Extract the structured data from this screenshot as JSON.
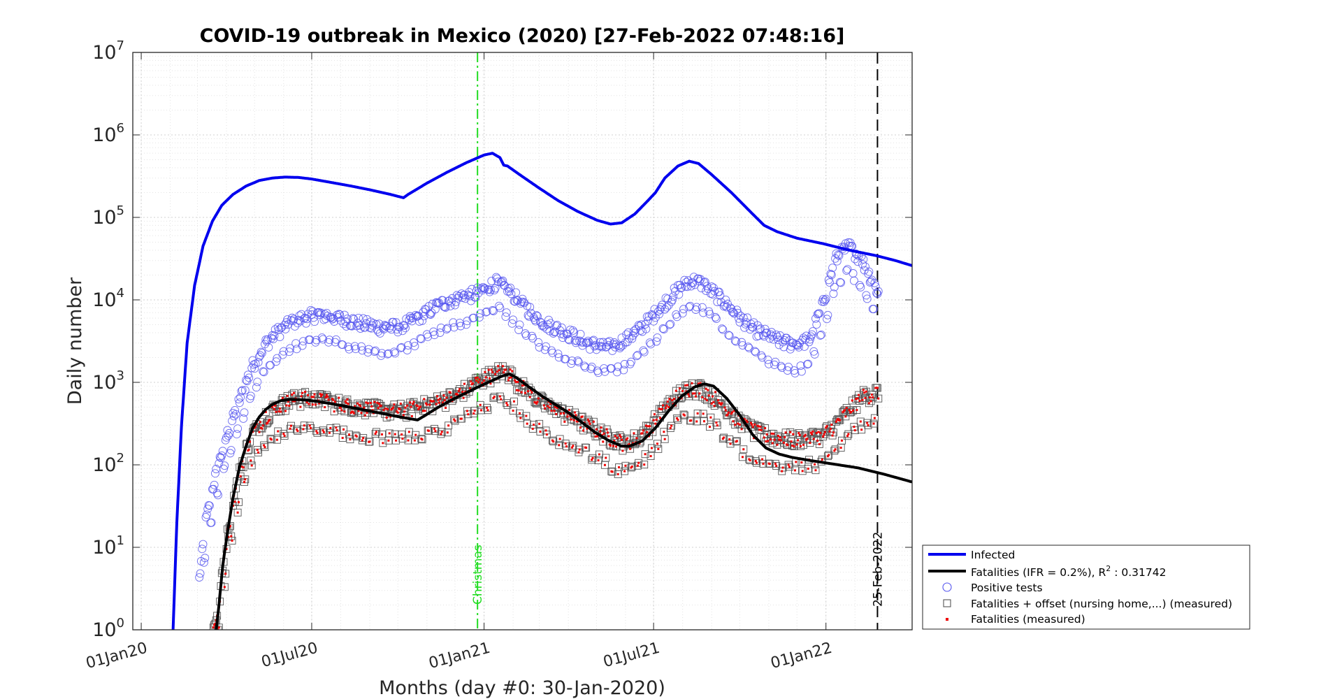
{
  "chart_data": {
    "type": "line",
    "title": "COVID-19 outbreak in Mexico (2020) [27-Feb-2022 07:48:16]",
    "xlabel": "Months (day #0: 30-Jan-2020)",
    "ylabel": "Daily number",
    "yscale": "log",
    "xlim": [
      "2019-12-23",
      "2022-04-03"
    ],
    "ylim": [
      1,
      10000000
    ],
    "x_ticks": [
      {
        "date": "2020-01-01",
        "label": "01Jan20"
      },
      {
        "date": "2020-07-01",
        "label": "01Jul20"
      },
      {
        "date": "2021-01-01",
        "label": "01Jan21"
      },
      {
        "date": "2021-07-01",
        "label": "01Jul21"
      },
      {
        "date": "2022-01-01",
        "label": "01Jan22"
      }
    ],
    "y_ticks": [
      {
        "value": 1,
        "base": "10",
        "exp": "0"
      },
      {
        "value": 10,
        "base": "10",
        "exp": "1"
      },
      {
        "value": 100,
        "base": "10",
        "exp": "2"
      },
      {
        "value": 1000,
        "base": "10",
        "exp": "3"
      },
      {
        "value": 10000,
        "base": "10",
        "exp": "4"
      },
      {
        "value": 100000,
        "base": "10",
        "exp": "5"
      },
      {
        "value": 1000000,
        "base": "10",
        "exp": "6"
      },
      {
        "value": 10000000,
        "base": "10",
        "exp": "7"
      }
    ],
    "grid": true,
    "legend_position": "right, outside bottom",
    "vertical_lines": [
      {
        "date": "2020-12-25",
        "label": "Christmas",
        "color": "#22dd22",
        "style": "dash-dot"
      },
      {
        "date": "2022-02-25",
        "label": "25-Feb-2022",
        "color": "#000000",
        "style": "dashed"
      }
    ],
    "series": [
      {
        "name": "Infected",
        "kind": "line",
        "color": "#0000ee",
        "points": [
          [
            "2020-02-04",
            1
          ],
          [
            "2020-02-08",
            20
          ],
          [
            "2020-02-13",
            300
          ],
          [
            "2020-02-19",
            3000
          ],
          [
            "2020-02-27",
            15000
          ],
          [
            "2020-03-07",
            45000
          ],
          [
            "2020-03-17",
            90000
          ],
          [
            "2020-03-27",
            140000
          ],
          [
            "2020-04-08",
            190000
          ],
          [
            "2020-04-22",
            240000
          ],
          [
            "2020-05-06",
            280000
          ],
          [
            "2020-05-20",
            300000
          ],
          [
            "2020-06-03",
            308000
          ],
          [
            "2020-06-17",
            305000
          ],
          [
            "2020-07-01",
            292000
          ],
          [
            "2020-07-22",
            265000
          ],
          [
            "2020-08-12",
            240000
          ],
          [
            "2020-09-02",
            215000
          ],
          [
            "2020-09-23",
            190000
          ],
          [
            "2020-10-07",
            173000
          ],
          [
            "2020-10-12",
            190000
          ],
          [
            "2020-11-01",
            260000
          ],
          [
            "2020-11-22",
            350000
          ],
          [
            "2020-12-13",
            460000
          ],
          [
            "2021-01-01",
            570000
          ],
          [
            "2021-01-10",
            600000
          ],
          [
            "2021-01-18",
            530000
          ],
          [
            "2021-01-22",
            430000
          ],
          [
            "2021-01-26",
            420000
          ],
          [
            "2021-02-08",
            330000
          ],
          [
            "2021-02-28",
            230000
          ],
          [
            "2021-03-21",
            160000
          ],
          [
            "2021-04-11",
            118000
          ],
          [
            "2021-05-02",
            92000
          ],
          [
            "2021-05-16",
            83000
          ],
          [
            "2021-05-28",
            86000
          ],
          [
            "2021-06-11",
            110000
          ],
          [
            "2021-06-25",
            160000
          ],
          [
            "2021-07-03",
            200000
          ],
          [
            "2021-07-13",
            300000
          ],
          [
            "2021-07-27",
            420000
          ],
          [
            "2021-08-08",
            480000
          ],
          [
            "2021-08-18",
            450000
          ],
          [
            "2021-09-01",
            330000
          ],
          [
            "2021-09-22",
            200000
          ],
          [
            "2021-10-13",
            115000
          ],
          [
            "2021-10-27",
            80000
          ],
          [
            "2021-11-10",
            67000
          ],
          [
            "2021-12-01",
            56000
          ],
          [
            "2021-12-29",
            48000
          ],
          [
            "2022-01-26",
            40000
          ],
          [
            "2022-02-23",
            34500
          ],
          [
            "2022-03-16",
            30000
          ],
          [
            "2022-04-03",
            26000
          ]
        ]
      },
      {
        "name": "Fatalities (IFR = 0.2%), R",
        "name_sup": "2",
        "name_rest": " : 0.31742",
        "kind": "line",
        "color": "#000000",
        "points": [
          [
            "2020-03-21",
            1
          ],
          [
            "2020-03-24",
            2
          ],
          [
            "2020-03-28",
            6
          ],
          [
            "2020-04-02",
            15
          ],
          [
            "2020-04-08",
            40
          ],
          [
            "2020-04-15",
            95
          ],
          [
            "2020-04-22",
            170
          ],
          [
            "2020-04-29",
            280
          ],
          [
            "2020-05-06",
            380
          ],
          [
            "2020-05-13",
            470
          ],
          [
            "2020-05-20",
            540
          ],
          [
            "2020-05-29",
            600
          ],
          [
            "2020-06-08",
            620
          ],
          [
            "2020-06-22",
            615
          ],
          [
            "2020-07-06",
            590
          ],
          [
            "2020-07-20",
            555
          ],
          [
            "2020-08-03",
            520
          ],
          [
            "2020-08-17",
            485
          ],
          [
            "2020-08-31",
            450
          ],
          [
            "2020-09-14",
            420
          ],
          [
            "2020-09-28",
            390
          ],
          [
            "2020-10-12",
            365
          ],
          [
            "2020-10-22",
            350
          ],
          [
            "2020-10-29",
            390
          ],
          [
            "2020-11-12",
            490
          ],
          [
            "2020-11-26",
            600
          ],
          [
            "2020-12-10",
            720
          ],
          [
            "2020-12-24",
            860
          ],
          [
            "2021-01-07",
            1020
          ],
          [
            "2021-01-21",
            1200
          ],
          [
            "2021-01-28",
            1260
          ],
          [
            "2021-02-04",
            1150
          ],
          [
            "2021-02-18",
            880
          ],
          [
            "2021-03-04",
            680
          ],
          [
            "2021-03-18",
            540
          ],
          [
            "2021-04-01",
            430
          ],
          [
            "2021-04-15",
            330
          ],
          [
            "2021-04-29",
            250
          ],
          [
            "2021-05-13",
            200
          ],
          [
            "2021-05-27",
            170
          ],
          [
            "2021-06-05",
            168
          ],
          [
            "2021-06-19",
            195
          ],
          [
            "2021-07-03",
            280
          ],
          [
            "2021-07-17",
            450
          ],
          [
            "2021-07-31",
            680
          ],
          [
            "2021-08-14",
            880
          ],
          [
            "2021-08-24",
            960
          ],
          [
            "2021-09-03",
            900
          ],
          [
            "2021-09-17",
            640
          ],
          [
            "2021-10-01",
            400
          ],
          [
            "2021-10-15",
            230
          ],
          [
            "2021-10-29",
            160
          ],
          [
            "2021-11-12",
            135
          ],
          [
            "2021-11-26",
            123
          ],
          [
            "2021-12-17",
            112
          ],
          [
            "2022-01-07",
            103
          ],
          [
            "2022-02-04",
            92
          ],
          [
            "2022-03-04",
            77
          ],
          [
            "2022-04-03",
            62
          ]
        ]
      },
      {
        "name": "Positive tests",
        "kind": "scatter",
        "marker": "circle",
        "color": "#5555ee",
        "generated_from": "weekly-oscillating daily counts, 2020-03-03 to 2022-02-26",
        "envelope_points": [
          [
            "2020-03-03",
            4
          ],
          [
            "2020-03-10",
            20
          ],
          [
            "2020-03-20",
            70
          ],
          [
            "2020-03-31",
            200
          ],
          [
            "2020-04-14",
            550
          ],
          [
            "2020-04-28",
            1500
          ],
          [
            "2020-05-12",
            2800
          ],
          [
            "2020-05-26",
            4000
          ],
          [
            "2020-06-09",
            5200
          ],
          [
            "2020-06-23",
            6000
          ],
          [
            "2020-07-07",
            6500
          ],
          [
            "2020-07-21",
            6300
          ],
          [
            "2020-08-04",
            5700
          ],
          [
            "2020-08-18",
            5200
          ],
          [
            "2020-09-01",
            4800
          ],
          [
            "2020-09-15",
            4500
          ],
          [
            "2020-09-29",
            4600
          ],
          [
            "2020-10-13",
            5200
          ],
          [
            "2020-10-27",
            6500
          ],
          [
            "2020-11-10",
            8000
          ],
          [
            "2020-11-24",
            9500
          ],
          [
            "2020-12-08",
            10500
          ],
          [
            "2020-12-22",
            11500
          ],
          [
            "2021-01-05",
            14000
          ],
          [
            "2021-01-15",
            16000
          ],
          [
            "2021-01-26",
            13000
          ],
          [
            "2021-02-09",
            9000
          ],
          [
            "2021-02-23",
            6500
          ],
          [
            "2021-03-09",
            5000
          ],
          [
            "2021-03-23",
            4200
          ],
          [
            "2021-04-06",
            3600
          ],
          [
            "2021-04-20",
            3000
          ],
          [
            "2021-05-04",
            2700
          ],
          [
            "2021-05-18",
            2700
          ],
          [
            "2021-06-01",
            3200
          ],
          [
            "2021-06-15",
            4200
          ],
          [
            "2021-06-29",
            6000
          ],
          [
            "2021-07-13",
            9000
          ],
          [
            "2021-07-27",
            13000
          ],
          [
            "2021-08-10",
            17000
          ],
          [
            "2021-08-24",
            15000
          ],
          [
            "2021-09-07",
            11000
          ],
          [
            "2021-09-21",
            7500
          ],
          [
            "2021-10-05",
            5500
          ],
          [
            "2021-10-19",
            4200
          ],
          [
            "2021-11-02",
            3500
          ],
          [
            "2021-11-16",
            3000
          ],
          [
            "2021-11-30",
            2800
          ],
          [
            "2021-12-14",
            3200
          ],
          [
            "2021-12-28",
            8000
          ],
          [
            "2022-01-11",
            30000
          ],
          [
            "2022-01-25",
            45000
          ],
          [
            "2022-02-08",
            30000
          ],
          [
            "2022-02-26",
            12000
          ]
        ]
      },
      {
        "name": "Fatalities + offset (nursing home,...) (measured)",
        "kind": "scatter",
        "marker": "square",
        "color": "#555555",
        "generated_from": "weekly-oscillating daily counts, 2020-03-18 to 2022-02-26"
      },
      {
        "name": "Fatalities (measured)",
        "kind": "scatter",
        "marker": "dot",
        "color": "#ee0000",
        "generated_from": "same dates and values as the squares",
        "envelope_points": [
          [
            "2020-03-18",
            1
          ],
          [
            "2020-03-24",
            2
          ],
          [
            "2020-03-31",
            10
          ],
          [
            "2020-04-07",
            30
          ],
          [
            "2020-04-14",
            70
          ],
          [
            "2020-04-21",
            140
          ],
          [
            "2020-04-28",
            230
          ],
          [
            "2020-05-12",
            380
          ],
          [
            "2020-05-26",
            500
          ],
          [
            "2020-06-09",
            600
          ],
          [
            "2020-06-23",
            620
          ],
          [
            "2020-07-07",
            600
          ],
          [
            "2020-07-21",
            560
          ],
          [
            "2020-08-04",
            520
          ],
          [
            "2020-08-18",
            490
          ],
          [
            "2020-09-01",
            470
          ],
          [
            "2020-09-15",
            450
          ],
          [
            "2020-09-29",
            440
          ],
          [
            "2020-10-13",
            460
          ],
          [
            "2020-10-27",
            500
          ],
          [
            "2020-11-10",
            550
          ],
          [
            "2020-11-24",
            620
          ],
          [
            "2020-12-08",
            750
          ],
          [
            "2020-12-22",
            950
          ],
          [
            "2021-01-05",
            1150
          ],
          [
            "2021-01-19",
            1350
          ],
          [
            "2021-01-28",
            1250
          ],
          [
            "2021-02-09",
            900
          ],
          [
            "2021-02-23",
            650
          ],
          [
            "2021-03-09",
            500
          ],
          [
            "2021-03-23",
            420
          ],
          [
            "2021-04-06",
            360
          ],
          [
            "2021-04-20",
            300
          ],
          [
            "2021-05-04",
            250
          ],
          [
            "2021-05-18",
            200
          ],
          [
            "2021-06-01",
            180
          ],
          [
            "2021-06-15",
            210
          ],
          [
            "2021-06-29",
            300
          ],
          [
            "2021-07-13",
            480
          ],
          [
            "2021-07-27",
            700
          ],
          [
            "2021-08-10",
            850
          ],
          [
            "2021-08-24",
            800
          ],
          [
            "2021-09-07",
            600
          ],
          [
            "2021-09-21",
            420
          ],
          [
            "2021-10-05",
            300
          ],
          [
            "2021-10-19",
            240
          ],
          [
            "2021-11-02",
            220
          ],
          [
            "2021-11-16",
            200
          ],
          [
            "2021-11-30",
            200
          ],
          [
            "2021-12-14",
            210
          ],
          [
            "2021-12-28",
            220
          ],
          [
            "2022-01-11",
            300
          ],
          [
            "2022-01-25",
            450
          ],
          [
            "2022-02-08",
            650
          ],
          [
            "2022-02-26",
            750
          ]
        ]
      }
    ]
  }
}
